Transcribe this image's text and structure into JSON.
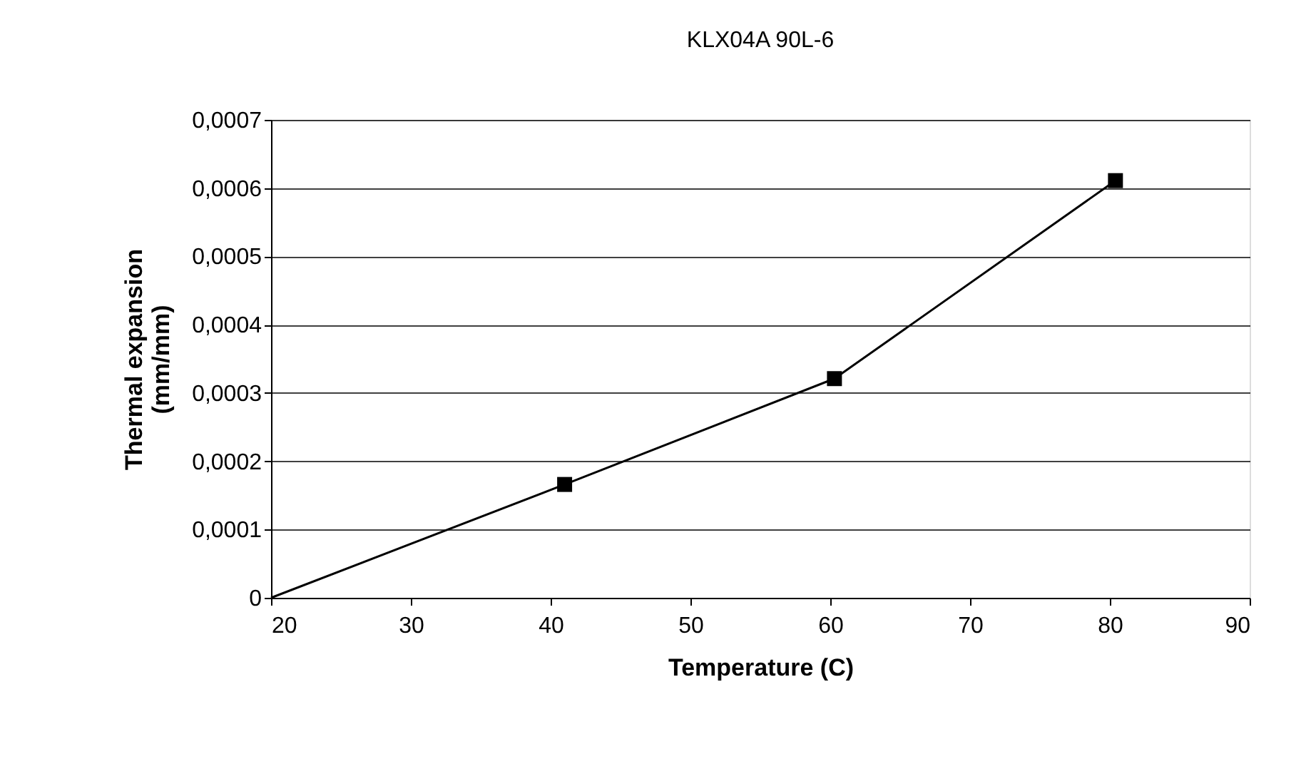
{
  "chart_data": {
    "type": "line",
    "title": "KLX04A 90L-6",
    "xlabel": "Temperature (C)",
    "ylabel": "Thermal expansion (mm/mm)",
    "series": [
      {
        "marker": "none",
        "color": "#000000",
        "x": [
          20,
          41.0,
          60.3,
          80.4
        ],
        "values": [
          0,
          0.000166,
          0.000321,
          0.000611
        ]
      },
      {
        "type": "scatter",
        "marker": "square",
        "color": "#000000",
        "x": [
          41.0,
          60.3,
          80.4
        ],
        "values": [
          0.000166,
          0.000321,
          0.000611
        ]
      }
    ],
    "xlim": [
      20,
      90
    ],
    "xticks": [
      20,
      30,
      40,
      50,
      60,
      70,
      80,
      90
    ],
    "ylim": [
      0,
      0.0007
    ],
    "yticks": [
      0,
      {
        "value": 0.0001,
        "label": "0,0001"
      },
      {
        "value": 0.0002,
        "label": "0,0002"
      },
      {
        "value": 0.0003,
        "label": "0,0003"
      },
      {
        "value": 0.0004,
        "label": "0,0004"
      },
      {
        "value": 0.0005,
        "label": "0,0005"
      },
      {
        "value": 0.0006,
        "label": "0,0006"
      },
      {
        "value": 0.0007,
        "label": "0,0007"
      }
    ],
    "grid": "y"
  }
}
